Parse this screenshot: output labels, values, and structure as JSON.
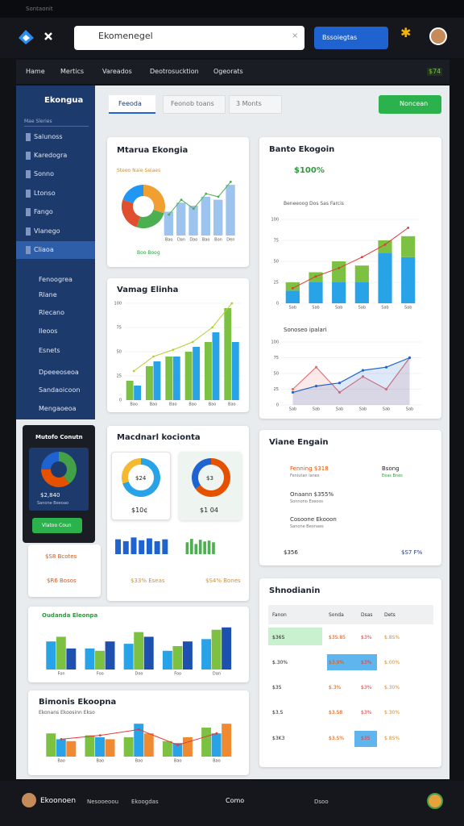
{
  "status": {
    "text": "Sontaonit"
  },
  "header": {
    "search": "Ekomenegel",
    "button": "Bssoiegtas"
  },
  "nav": {
    "items": [
      "Hame",
      "Mertics",
      "Vareados",
      "Deotrosucktion",
      "Ogeorats"
    ],
    "badge": "$74"
  },
  "sidebar": {
    "brand": "Ekongua",
    "section": "Mae Sleries",
    "items": [
      "Salunoss",
      "Karedogra",
      "Sonno",
      "Ltonso",
      "Fango",
      "Vlanego",
      "Cliaoa"
    ],
    "items2": [
      "Fenoogrea",
      "Rlane",
      "Rlecano",
      "Ileoos",
      "Esnets"
    ],
    "items3": [
      "Dpeeeoseoa",
      "Sandaoicoon",
      "Mengaoeoa"
    ]
  },
  "promo": {
    "title": "Mutofo Conutn",
    "value": "$2,840",
    "caption": "Sanone Beeoao",
    "button": "Vlatoo Coun",
    "donut": {
      "values": [
        40,
        35,
        25
      ],
      "colors": [
        "#43a047",
        "#e65100",
        "#1e63d0"
      ]
    }
  },
  "tabs": [
    "Feeoda",
    "Feonob toans",
    "3 Monts"
  ],
  "action": "Noncean",
  "cards": {
    "ekongia": {
      "title": "Mtarua Ekongia",
      "subtitle": "Steeo Naie Seiaes",
      "legend": "Boo Boog",
      "donut": {
        "values": [
          30,
          25,
          25,
          20
        ],
        "colors": [
          "#f0a030",
          "#4caf50",
          "#e05030",
          "#2196f3"
        ]
      },
      "chart": {
        "type": "bar",
        "categories": [
          "Bao",
          "Dan",
          "Dao",
          "Bao",
          "Bon",
          "Den"
        ],
        "ylim": [
          0,
          100
        ],
        "series": [
          {
            "color": "#9cc4ee",
            "values": [
              40,
              55,
              50,
              65,
              60,
              85
            ]
          }
        ],
        "line": {
          "color": "#4caf50",
          "values": [
            35,
            60,
            45,
            70,
            65,
            90
          ]
        }
      }
    },
    "elinha": {
      "title": "Vamag Elinha",
      "chart": {
        "type": "bar",
        "categories": [
          "Bao",
          "Bao",
          "Bao",
          "Bao",
          "Bao",
          "Bao"
        ],
        "ylim": [
          0,
          100
        ],
        "yticks": [
          0,
          25,
          50,
          75,
          100
        ],
        "series": [
          {
            "color": "#7cc142",
            "values": [
              20,
              35,
              45,
              50,
              60,
              95
            ]
          },
          {
            "color": "#29a3e8",
            "values": [
              15,
              40,
              45,
              55,
              70,
              60
            ]
          }
        ],
        "line": {
          "color": "#b5cf3a",
          "values": [
            30,
            45,
            52,
            60,
            75,
            100
          ]
        }
      }
    },
    "kocionta": {
      "title": "Macdnarl kocionta",
      "donut1": {
        "center": "$24",
        "label": "$10¢",
        "values": [
          70,
          30
        ],
        "colors": [
          "#29a3e8",
          "#f5b82e"
        ]
      },
      "donut2": {
        "center": "$3",
        "label": "$1 04",
        "values": [
          65,
          35
        ],
        "colors": [
          "#e65100",
          "#1e63d0"
        ]
      },
      "mini1": {
        "type": "bar",
        "ylim": [
          0,
          100
        ],
        "series": [
          {
            "color": "#1e63d0",
            "values": [
              80,
              70,
              90,
              75,
              85,
              70,
              80
            ]
          }
        ]
      },
      "mini2": {
        "type": "bar",
        "ylim": [
          0,
          100
        ],
        "series": [
          {
            "color": "#4caf50",
            "values": [
              70,
              90,
              60,
              85,
              75,
              80,
              70
            ]
          }
        ]
      },
      "stat1": "$33% Eseas",
      "stat2": "$S4% Bones",
      "side1": "$S8 Bcotes",
      "side2": "$R6 Bosos"
    },
    "eleonpa": {
      "title": "Oudanda Eleonpa",
      "chart": {
        "type": "bar",
        "categories": [
          "Fon",
          "Foo",
          "Doo",
          "Foo",
          "Dan"
        ],
        "ylim": [
          0,
          100
        ],
        "series": [
          {
            "color": "#29a3e8",
            "values": [
              60,
              45,
              55,
              40,
              65
            ]
          },
          {
            "color": "#7cc142",
            "values": [
              70,
              40,
              80,
              50,
              85
            ]
          },
          {
            "color": "#1e50b0",
            "values": [
              45,
              60,
              70,
              60,
              90
            ]
          }
        ]
      }
    },
    "ekoopna": {
      "title": "Bimonis Ekoopna",
      "subtitle": "Ekonans Ekoosinn Ekso",
      "chart": {
        "type": "bar",
        "categories": [
          "Bao",
          "Bao",
          "Bao",
          "Bao",
          "Bao"
        ],
        "ylim": [
          0,
          100
        ],
        "series": [
          {
            "color": "#7cc142",
            "values": [
              60,
              55,
              50,
              40,
              75
            ]
          },
          {
            "color": "#29a3e8",
            "values": [
              45,
              50,
              85,
              35,
              60
            ]
          },
          {
            "color": "#f08a30",
            "values": [
              40,
              45,
              60,
              50,
              85
            ]
          }
        ],
        "line": {
          "color": "#e53935",
          "values": [
            45,
            55,
            70,
            30,
            60
          ]
        }
      }
    },
    "ekogoin": {
      "title": "Banto Ekogoin",
      "value": "$100%",
      "subtitle": "Beneeoog Dos Sas Farcis",
      "subtitle2": "Sonoseo ipalari",
      "chart": {
        "type": "stacked",
        "categories": [
          "Sab",
          "Sab",
          "Sab",
          "Sab",
          "Sab",
          "Sab"
        ],
        "ylim": [
          0,
          100
        ],
        "yticks": [
          0,
          25,
          50,
          75,
          100
        ],
        "series": [
          {
            "color": "#29a3e8",
            "values": [
              15,
              25,
              25,
              25,
              60,
              55
            ]
          },
          {
            "color": "#7cc142",
            "values": [
              10,
              12,
              25,
              20,
              15,
              25
            ]
          }
        ],
        "line": {
          "color": "#e53935",
          "values": [
            18,
            32,
            42,
            55,
            70,
            90
          ]
        }
      },
      "area": {
        "type": "area",
        "categories": [
          "Sab",
          "Sab",
          "Sab",
          "Sab",
          "Sab",
          "Sab"
        ],
        "ylim": [
          0,
          100
        ],
        "yticks": [
          0,
          25,
          50,
          75,
          100
        ],
        "series": [
          {
            "color": "#e57373",
            "values": [
              25,
              60,
              20,
              45,
              25,
              75
            ]
          },
          {
            "color": "#1e63d0",
            "values": [
              20,
              30,
              35,
              55,
              60,
              75
            ]
          }
        ]
      }
    },
    "engain": {
      "title": "Viane Engain",
      "rows": [
        {
          "title": "Fenning $318",
          "sub": "Feniutan lanes",
          "right": "Bsong",
          "rsub": "Eeas Bnes"
        },
        {
          "title": "Onaann $355%",
          "sub": "Sonnono Eseoos"
        },
        {
          "title": "Cosoone Ekooon",
          "sub": "Sanone Beonaes"
        }
      ],
      "foot1": "$356",
      "foot2": "$S7 F%"
    },
    "table": {
      "title": "Shnodianin",
      "header": [
        "Fanon",
        "Sonda",
        "Dsas",
        "Dets"
      ],
      "rows": [
        [
          "$36S",
          "$3S.85",
          "$3%",
          "$.8S%"
        ],
        [
          "$.30%",
          "$3.9%",
          "$3%",
          "$.00%"
        ],
        [
          "$3S",
          "$.3%",
          "$3%",
          "$.30%"
        ],
        [
          "$3.S",
          "$3.S8",
          "$3%",
          "$.30%"
        ],
        [
          "$3K3",
          "$3.S%",
          "$3S",
          "$.8S%"
        ]
      ]
    }
  },
  "footer": {
    "name": "Ekoonoen",
    "link1": "Nesooeoou",
    "link2": "Ekoogdas",
    "center": "Como",
    "right": "Dsoo"
  }
}
